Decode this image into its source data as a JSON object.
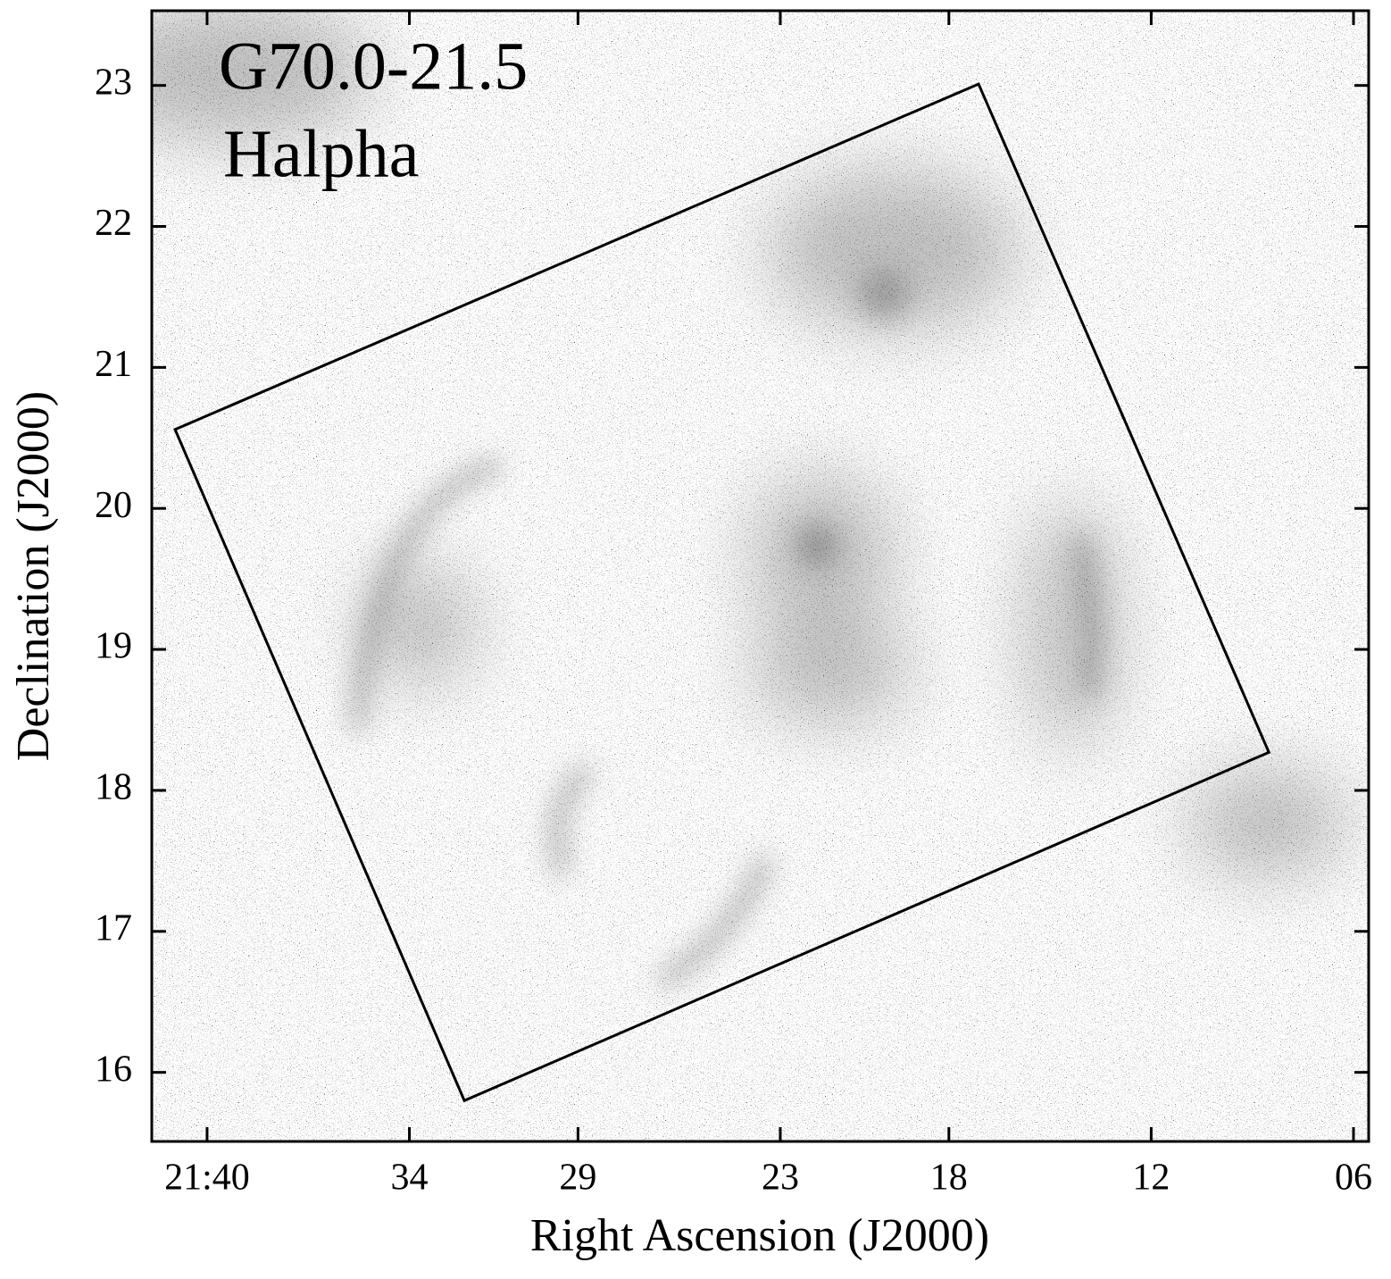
{
  "chart_data": {
    "type": "image",
    "title": "G70.0-21.5",
    "subtitle": "Halpha",
    "x_label": "Right Ascension (J2000)",
    "y_label": "Declination (J2000)",
    "xlim": [
      41.64,
      5.55
    ],
    "xticks": [
      {
        "value": 40,
        "label": "21:40"
      },
      {
        "value": 34,
        "label": "34"
      },
      {
        "value": 29,
        "label": "29"
      },
      {
        "value": 23,
        "label": "23"
      },
      {
        "value": 18,
        "label": "18"
      },
      {
        "value": 12,
        "label": "12"
      },
      {
        "value": 6,
        "label": "06"
      }
    ],
    "ylim": [
      15.51,
      23.53
    ],
    "yticks": [
      16,
      17,
      18,
      19,
      20,
      21,
      22,
      23
    ],
    "field_box": {
      "ra": [
        40.95,
        17.12,
        8.51,
        32.37
      ],
      "dec": [
        20.56,
        23.01,
        18.27,
        15.8
      ]
    }
  }
}
